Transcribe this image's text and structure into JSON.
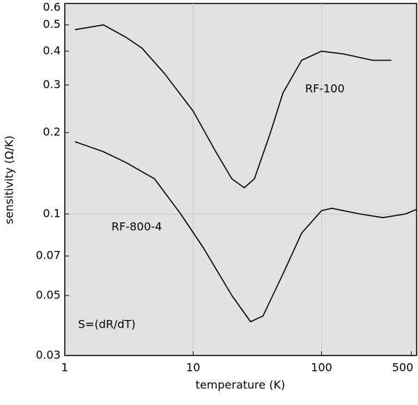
{
  "chart_data": {
    "type": "line",
    "x_label": "temperature (K)",
    "y_label": "sensitivity (Ω/K)",
    "annotations": [
      "S=(dR/dT)"
    ],
    "log_x": true,
    "log_y": true,
    "grid": true,
    "xlim": [
      1,
      550
    ],
    "xticks": [
      1,
      10,
      100,
      500
    ],
    "ylim": [
      0.03,
      0.6
    ],
    "yticks": [
      0.03,
      0.05,
      0.07,
      0.1,
      0.2,
      0.3,
      0.4,
      0.5,
      0.6
    ],
    "series": [
      {
        "name": "RF-100",
        "color": "#000000",
        "x": [
          1.2,
          2,
          3,
          4,
          6,
          10,
          15,
          20,
          25,
          30,
          40,
          50,
          70,
          100,
          150,
          250,
          350
        ],
        "values": [
          0.48,
          0.5,
          0.45,
          0.41,
          0.33,
          0.24,
          0.17,
          0.135,
          0.125,
          0.135,
          0.2,
          0.28,
          0.37,
          0.4,
          0.39,
          0.37,
          0.37
        ]
      },
      {
        "name": "RF-800-4",
        "color": "#000000",
        "x": [
          1.2,
          2,
          3,
          5,
          8,
          12,
          20,
          28,
          35,
          50,
          70,
          100,
          120,
          200,
          300,
          450,
          550
        ],
        "values": [
          0.185,
          0.17,
          0.155,
          0.135,
          0.1,
          0.075,
          0.05,
          0.04,
          0.042,
          0.06,
          0.085,
          0.103,
          0.105,
          0.1,
          0.097,
          0.1,
          0.104
        ]
      }
    ]
  }
}
